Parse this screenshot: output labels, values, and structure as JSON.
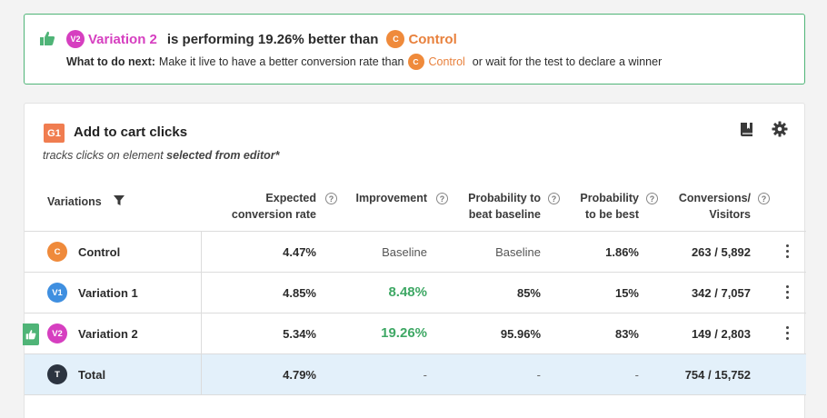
{
  "banner": {
    "winner_badge": "V2",
    "winner_name": "Variation 2",
    "performing_text": "is performing 19.26% better than",
    "control_badge": "C",
    "control_name": "Control",
    "next_label": "What to do next:",
    "next_text": "Make it live to have a better conversion rate than",
    "next_control_badge": "C",
    "next_control_name": "Control",
    "wait_text": "or wait for the test to declare a winner"
  },
  "goal": {
    "badge": "G1",
    "title": "Add to cart clicks",
    "desc_prefix": "tracks clicks on element",
    "desc_bold": "selected from editor*",
    "icons": [
      "book-icon",
      "gear-icon"
    ]
  },
  "table": {
    "headers": {
      "variations": "Variations",
      "rate_l1": "Expected",
      "rate_l2": "conversion rate",
      "improvement": "Improvement",
      "prob_l1": "Probability to",
      "prob_l2": "beat baseline",
      "best_l1": "Probability",
      "best_l2": "to be best",
      "conv_l1": "Conversions/",
      "conv_l2": "Visitors",
      "help": "?"
    },
    "rows": [
      {
        "badge": "C",
        "name": "Control",
        "rate": "4.47%",
        "improvement": "Baseline",
        "prob": "Baseline",
        "best": "1.86%",
        "conv": "263 / 5,892"
      },
      {
        "badge": "V1",
        "name": "Variation 1",
        "rate": "4.85%",
        "improvement": "8.48%",
        "prob": "85%",
        "best": "15%",
        "conv": "342 / 7,057"
      },
      {
        "badge": "V2",
        "name": "Variation 2",
        "rate": "5.34%",
        "improvement": "19.26%",
        "prob": "95.96%",
        "best": "83%",
        "conv": "149 / 2,803"
      }
    ],
    "total": {
      "badge": "T",
      "name": "Total",
      "rate": "4.79%",
      "improvement": "-",
      "prob": "-",
      "best": "-",
      "conv": "754 / 15,752"
    }
  },
  "colors": {
    "winner": "#4fb477",
    "variation2": "#d63fc0",
    "control": "#ef8a3b",
    "variation1": "#3f8fe0",
    "total_row": "#e3f0fa"
  }
}
